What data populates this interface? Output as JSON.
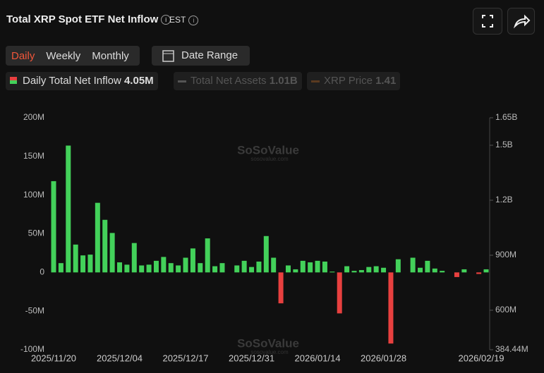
{
  "header": {
    "title": "Total XRP Spot ETF Net Inflow",
    "timezone": "EST"
  },
  "tabs": [
    "Daily",
    "Weekly",
    "Monthly"
  ],
  "date_range": "Date Range",
  "legend": [
    {
      "name": "Daily Total Net Inflow",
      "value": "4.05M"
    },
    {
      "name": "Total Net Assets",
      "value": "1.01B"
    },
    {
      "name": "XRP Price",
      "value": "1.41"
    }
  ],
  "watermark": {
    "brand": "SoSoValue",
    "site": "sosovalue.com"
  },
  "chart_data": {
    "type": "bar",
    "categories": [
      "2025/11/20",
      null,
      null,
      null,
      null,
      null,
      null,
      null,
      null,
      "2025/12/04",
      null,
      null,
      null,
      null,
      null,
      null,
      null,
      null,
      "2025/12/17",
      null,
      null,
      null,
      null,
      null,
      null,
      null,
      null,
      "2025/12/31",
      null,
      null,
      null,
      null,
      null,
      null,
      null,
      null,
      "2026/01/14",
      null,
      null,
      null,
      null,
      null,
      null,
      null,
      null,
      "2026/01/28",
      null,
      null,
      null,
      null,
      null,
      null,
      null,
      null,
      null,
      null,
      null,
      null,
      null,
      "2026/02/19"
    ],
    "values": [
      118,
      12,
      164,
      36,
      22,
      23,
      90,
      68,
      51,
      13,
      10,
      38,
      9,
      10,
      15,
      20,
      12,
      9,
      19,
      31,
      12,
      44,
      8,
      12,
      0,
      9,
      15,
      7,
      14,
      47,
      19,
      -40,
      9,
      4,
      15,
      13,
      15,
      14,
      1,
      -53,
      8,
      2,
      3,
      7,
      8,
      6,
      -92,
      17,
      0,
      19,
      6,
      15,
      5,
      2,
      0,
      -6,
      4,
      0,
      -2,
      4
    ],
    "color_positive": "#43d15a",
    "color_negative": "#e8403f",
    "ylim": [
      -100,
      200
    ],
    "yticks": [
      {
        "value": -100,
        "label": "-100M"
      },
      {
        "value": -50,
        "label": "-50M"
      },
      0,
      {
        "value": 50,
        "label": "50M"
      },
      {
        "value": 100,
        "label": "100M"
      },
      {
        "value": 150,
        "label": "150M"
      },
      {
        "value": 200,
        "label": "200M"
      }
    ],
    "y2lim": [
      384.44,
      1650
    ],
    "y2ticks": [
      {
        "value": 384.44,
        "label": "384.44M"
      },
      {
        "value": 600,
        "label": "600M"
      },
      {
        "value": 900,
        "label": "900M"
      },
      {
        "value": 1200,
        "label": "1.2B"
      },
      {
        "value": 1500,
        "label": "1.5B"
      },
      {
        "value": 1650,
        "label": "1.65B"
      }
    ]
  }
}
